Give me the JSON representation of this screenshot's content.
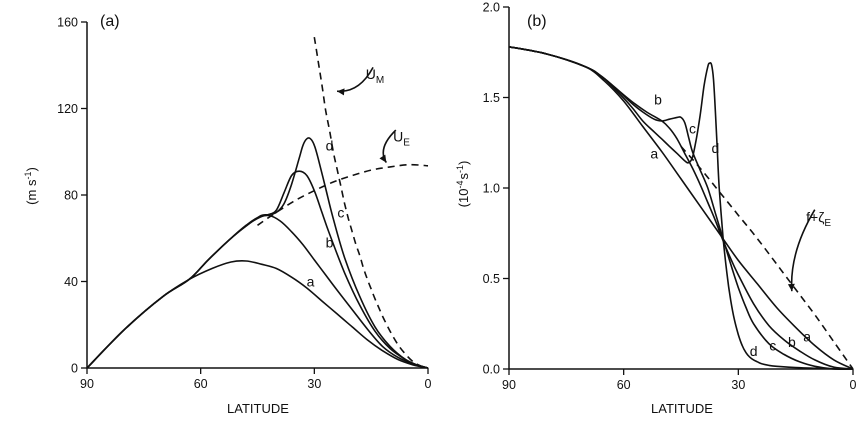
{
  "chart_data": [
    {
      "type": "line",
      "panel_label": "(a)",
      "xlabel": "LATITUDE",
      "ylabel": "(m s-1)",
      "ylabel_parts": {
        "base": "(m s",
        "sup": "-1",
        "close": ")"
      },
      "xlim": [
        90,
        0
      ],
      "ylim": [
        0,
        160
      ],
      "xticks": [
        90,
        60,
        30,
        0
      ],
      "yticks": [
        0,
        40,
        80,
        120,
        160
      ],
      "series": [
        {
          "name": "a",
          "style": "solid",
          "x": [
            90,
            80,
            70,
            63,
            57,
            52,
            48,
            44,
            40,
            36,
            32,
            28,
            24,
            20,
            16,
            12,
            8,
            4,
            0
          ],
          "y": [
            0,
            18,
            33,
            41,
            46,
            49,
            49.5,
            48,
            46,
            42,
            37,
            31,
            25,
            19,
            13,
            8,
            4,
            1.5,
            0
          ]
        },
        {
          "name": "b",
          "style": "solid",
          "x": [
            90,
            80,
            70,
            63,
            58,
            52,
            48,
            45,
            42,
            39,
            36,
            33,
            30,
            27,
            24,
            20,
            16,
            12,
            8,
            4,
            0
          ],
          "y": [
            0,
            18,
            33,
            41,
            50,
            60,
            66,
            69.5,
            70.5,
            68,
            63,
            57,
            50,
            43,
            36,
            27,
            18,
            10,
            5,
            2,
            0
          ]
        },
        {
          "name": "c",
          "style": "solid",
          "x": [
            90,
            80,
            70,
            63,
            58,
            52,
            47,
            44,
            42,
            40,
            38,
            36,
            34,
            32,
            30,
            28,
            26,
            22,
            18,
            14,
            10,
            6,
            3,
            0
          ],
          "y": [
            0,
            18,
            33,
            41,
            50,
            60,
            67,
            70.5,
            71,
            73,
            81,
            89,
            91,
            89,
            82,
            72,
            62,
            44,
            29,
            17,
            9,
            4,
            1.5,
            0
          ]
        },
        {
          "name": "d",
          "style": "solid",
          "x": [
            90,
            80,
            70,
            63,
            58,
            52,
            47,
            44,
            42,
            40,
            38,
            36,
            34,
            33,
            32,
            31,
            30,
            29,
            27,
            25,
            22,
            18,
            14,
            10,
            6,
            3,
            0
          ],
          "y": [
            0,
            18,
            33,
            41,
            50,
            60,
            67,
            70,
            71,
            72,
            76,
            85,
            97,
            103,
            106,
            106,
            103,
            97,
            83,
            69,
            51,
            33,
            19,
            10,
            4,
            1.5,
            0
          ]
        },
        {
          "name": "U_E",
          "style": "dashed",
          "x": [
            45,
            40,
            35,
            30,
            25,
            20,
            15,
            10,
            5,
            0
          ],
          "y": [
            66,
            72,
            77.5,
            82,
            86,
            89,
            91.5,
            93,
            94,
            93.5
          ]
        },
        {
          "name": "U_M",
          "style": "dashed",
          "x": [
            30,
            29,
            28,
            27,
            26,
            25,
            24,
            23,
            22,
            21,
            20,
            19,
            18,
            17,
            16,
            15,
            14,
            13,
            12,
            10,
            8,
            6,
            4,
            2,
            0
          ],
          "y": [
            153,
            142,
            131,
            119,
            110,
            100,
            92,
            84,
            76,
            69,
            63,
            57,
            52,
            46,
            41,
            36.5,
            32,
            28,
            24,
            17,
            11,
            6.5,
            3,
            1,
            0
          ]
        }
      ],
      "annotations": [
        {
          "text": "a",
          "x": 31,
          "y": 40
        },
        {
          "text": "b",
          "x": 26,
          "y": 58
        },
        {
          "text": "c",
          "x": 23,
          "y": 72
        },
        {
          "text": "d",
          "x": 26,
          "y": 103
        },
        {
          "text": "U",
          "sub": "M",
          "x": 14,
          "y": 136
        },
        {
          "text": "U",
          "sub": "E",
          "x": 7,
          "y": 107
        }
      ],
      "arrows": [
        {
          "from": [
            14.5,
            139
          ],
          "to": [
            24,
            128
          ],
          "bend": "down"
        },
        {
          "from": [
            8.5,
            110
          ],
          "to": [
            11,
            95
          ],
          "bend": "left"
        }
      ]
    },
    {
      "type": "line",
      "panel_label": "(b)",
      "xlabel": "LATITUDE",
      "ylabel": "(10-4 s-1)",
      "ylabel_parts": {
        "base": "(10",
        "sup1": "-4",
        "mid": "s",
        "sup2": "-1",
        "close": ")"
      },
      "xlim": [
        90,
        0
      ],
      "ylim": [
        0.0,
        2.0
      ],
      "xticks": [
        90,
        60,
        30,
        0
      ],
      "yticks": [
        0.0,
        0.5,
        1.0,
        1.5,
        2.0
      ],
      "series": [
        {
          "name": "a",
          "style": "solid",
          "x": [
            90,
            80,
            70,
            65,
            60,
            55,
            50,
            45,
            40,
            35,
            30,
            25,
            20,
            15,
            10,
            5,
            0
          ],
          "y": [
            1.78,
            1.74,
            1.67,
            1.59,
            1.48,
            1.34,
            1.2,
            1.05,
            0.9,
            0.75,
            0.6,
            0.47,
            0.34,
            0.23,
            0.13,
            0.05,
            0.0
          ]
        },
        {
          "name": "b",
          "style": "solid",
          "x": [
            90,
            80,
            70,
            66,
            62,
            58,
            54,
            50,
            48,
            46,
            44,
            42,
            40,
            38,
            36,
            34,
            32,
            30,
            26,
            22,
            18,
            14,
            10,
            5,
            0
          ],
          "y": [
            1.78,
            1.74,
            1.67,
            1.62,
            1.55,
            1.48,
            1.42,
            1.37,
            1.33,
            1.27,
            1.19,
            1.11,
            1.02,
            0.92,
            0.82,
            0.71,
            0.61,
            0.52,
            0.36,
            0.24,
            0.16,
            0.1,
            0.05,
            0.01,
            0.0
          ]
        },
        {
          "name": "c",
          "style": "solid",
          "x": [
            90,
            80,
            70,
            66,
            62,
            58,
            55,
            52,
            50,
            48,
            46,
            45,
            44,
            43,
            42,
            40,
            38,
            36,
            34,
            32,
            30,
            28,
            26,
            22,
            18,
            14,
            10,
            5,
            0
          ],
          "y": [
            1.78,
            1.74,
            1.67,
            1.62,
            1.55,
            1.47,
            1.42,
            1.38,
            1.37,
            1.38,
            1.39,
            1.39,
            1.36,
            1.28,
            1.2,
            1.1,
            1.0,
            0.86,
            0.72,
            0.58,
            0.45,
            0.34,
            0.25,
            0.14,
            0.08,
            0.04,
            0.015,
            0.0,
            0.0
          ]
        },
        {
          "name": "d",
          "style": "solid",
          "x": [
            90,
            80,
            70,
            66,
            62,
            58,
            55,
            52,
            50,
            48,
            46,
            44,
            43,
            42,
            41,
            40,
            39,
            38,
            37.5,
            37,
            36.5,
            36,
            35.5,
            35,
            34,
            33,
            32,
            31,
            30,
            29,
            28,
            27,
            26,
            25,
            24,
            22,
            20,
            15,
            10,
            5,
            0
          ],
          "y": [
            1.78,
            1.74,
            1.67,
            1.62,
            1.54,
            1.45,
            1.37,
            1.31,
            1.27,
            1.23,
            1.19,
            1.15,
            1.14,
            1.17,
            1.27,
            1.4,
            1.56,
            1.67,
            1.69,
            1.68,
            1.6,
            1.42,
            1.21,
            1.0,
            0.73,
            0.53,
            0.38,
            0.27,
            0.19,
            0.13,
            0.09,
            0.065,
            0.05,
            0.04,
            0.03,
            0.02,
            0.015,
            0.008,
            0.004,
            0.001,
            0.0
          ]
        },
        {
          "name": "f+ζ_E",
          "style": "dashed",
          "x": [
            45,
            40,
            35,
            30,
            25,
            20,
            15,
            10,
            5,
            0
          ],
          "y": [
            1.23,
            1.11,
            0.98,
            0.85,
            0.72,
            0.58,
            0.44,
            0.3,
            0.15,
            0.0
          ]
        }
      ],
      "annotations": [
        {
          "text": "a",
          "x": 52,
          "y": 1.19
        },
        {
          "text": "b",
          "x": 51,
          "y": 1.49
        },
        {
          "text": "c",
          "x": 42,
          "y": 1.33
        },
        {
          "text": "d",
          "x": 36,
          "y": 1.22
        },
        {
          "text": "a",
          "x": 12,
          "y": 0.18
        },
        {
          "text": "b",
          "x": 16,
          "y": 0.15
        },
        {
          "text": "c",
          "x": 21,
          "y": 0.13
        },
        {
          "text": "d",
          "x": 26,
          "y": 0.1
        },
        {
          "text": "f+ζ",
          "sub": "E",
          "x": 9,
          "y": 0.84
        }
      ],
      "arrows": [
        {
          "from": [
            10,
            0.88
          ],
          "to": [
            16,
            0.43
          ],
          "bend": "left"
        }
      ]
    }
  ]
}
